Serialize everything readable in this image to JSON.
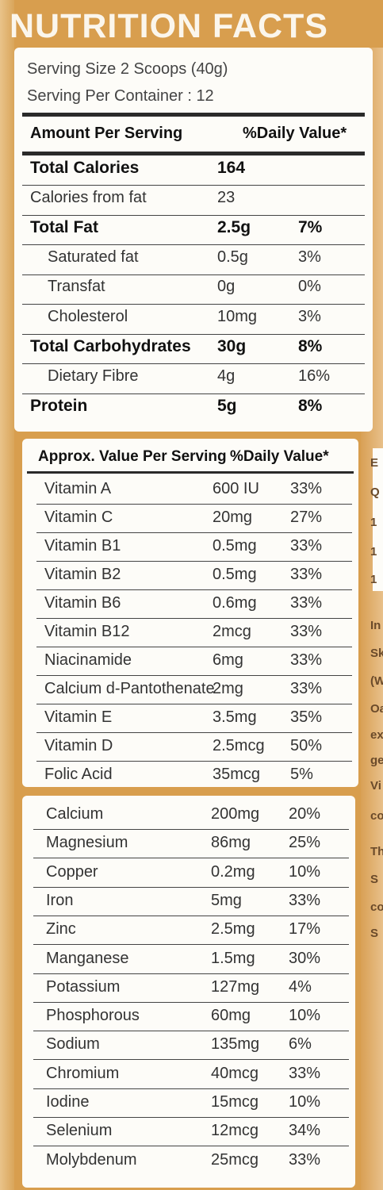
{
  "title": "NUTRITION FACTS",
  "serving": {
    "size": "Serving Size 2 Scoops (40g)",
    "per_container": "Serving Per Container : 12"
  },
  "main_header": {
    "left": "Amount Per Serving",
    "right": "%Daily Value*"
  },
  "main_rows": [
    {
      "name": "Total Calories",
      "amount": "164",
      "dv": "",
      "bold": true,
      "indent": 0
    },
    {
      "name": "Calories from fat",
      "amount": "23",
      "dv": "",
      "bold": false,
      "indent": 0
    },
    {
      "name": "Total Fat",
      "amount": "2.5g",
      "dv": "7%",
      "bold": true,
      "indent": 0
    },
    {
      "name": "Saturated fat",
      "amount": "0.5g",
      "dv": "3%",
      "bold": false,
      "indent": 1
    },
    {
      "name": "Transfat",
      "amount": "0g",
      "dv": "0%",
      "bold": false,
      "indent": 1
    },
    {
      "name": "Cholesterol",
      "amount": "10mg",
      "dv": "3%",
      "bold": false,
      "indent": 1
    },
    {
      "name": "Total Carbohydrates",
      "amount": "30g",
      "dv": "8%",
      "bold": true,
      "indent": 0
    },
    {
      "name": "Dietary Fibre",
      "amount": "4g",
      "dv": "16%",
      "bold": false,
      "indent": 1
    },
    {
      "name": "Protein",
      "amount": "5g",
      "dv": "8%",
      "bold": true,
      "indent": 0
    }
  ],
  "vitamins_header": {
    "left": "Approx. Value Per Serving",
    "right": "%Daily Value*"
  },
  "vitamins": [
    {
      "name": "Vitamin A",
      "amount": "600 IU",
      "dv": "33%"
    },
    {
      "name": "Vitamin C",
      "amount": "20mg",
      "dv": "27%"
    },
    {
      "name": "Vitamin B1",
      "amount": "0.5mg",
      "dv": "33%"
    },
    {
      "name": "Vitamin B2",
      "amount": "0.5mg",
      "dv": "33%"
    },
    {
      "name": "Vitamin B6",
      "amount": "0.6mg",
      "dv": "33%"
    },
    {
      "name": "Vitamin B12",
      "amount": "2mcg",
      "dv": "33%"
    },
    {
      "name": "Niacinamide",
      "amount": "6mg",
      "dv": "33%"
    },
    {
      "name": "Calcium d-Pantothenate",
      "amount": "2mg",
      "dv": "33%"
    },
    {
      "name": "Vitamin E",
      "amount": "3.5mg",
      "dv": "35%"
    },
    {
      "name": "Vitamin D",
      "amount": "2.5mcg",
      "dv": "50%"
    },
    {
      "name": "Folic Acid",
      "amount": "35mcg",
      "dv": "5%"
    }
  ],
  "minerals": [
    {
      "name": "Calcium",
      "amount": "200mg",
      "dv": "20%"
    },
    {
      "name": "Magnesium",
      "amount": "86mg",
      "dv": "25%"
    },
    {
      "name": "Copper",
      "amount": "0.2mg",
      "dv": "10%"
    },
    {
      "name": "Iron",
      "amount": "5mg",
      "dv": "33%"
    },
    {
      "name": "Zinc",
      "amount": "2.5mg",
      "dv": "17%"
    },
    {
      "name": "Manganese",
      "amount": "1.5mg",
      "dv": "30%"
    },
    {
      "name": "Potassium",
      "amount": "127mg",
      "dv": "4%"
    },
    {
      "name": "Phosphorous",
      "amount": "60mg",
      "dv": "10%"
    },
    {
      "name": "Sodium",
      "amount": "135mg",
      "dv": "6%"
    },
    {
      "name": "Chromium",
      "amount": "40mcg",
      "dv": "33%"
    },
    {
      "name": "Iodine",
      "amount": "15mcg",
      "dv": "10%"
    },
    {
      "name": "Selenium",
      "amount": "12mcg",
      "dv": "34%"
    },
    {
      "name": "Molybdenum",
      "amount": "25mcg",
      "dv": "33%"
    }
  ],
  "side_fragments": [
    "E",
    "Q",
    "1",
    "1",
    "1",
    "In",
    "Sk",
    "(W",
    "Oa",
    "ex",
    "ge",
    "Vi",
    "co",
    "Th",
    "S",
    "co",
    "S"
  ]
}
